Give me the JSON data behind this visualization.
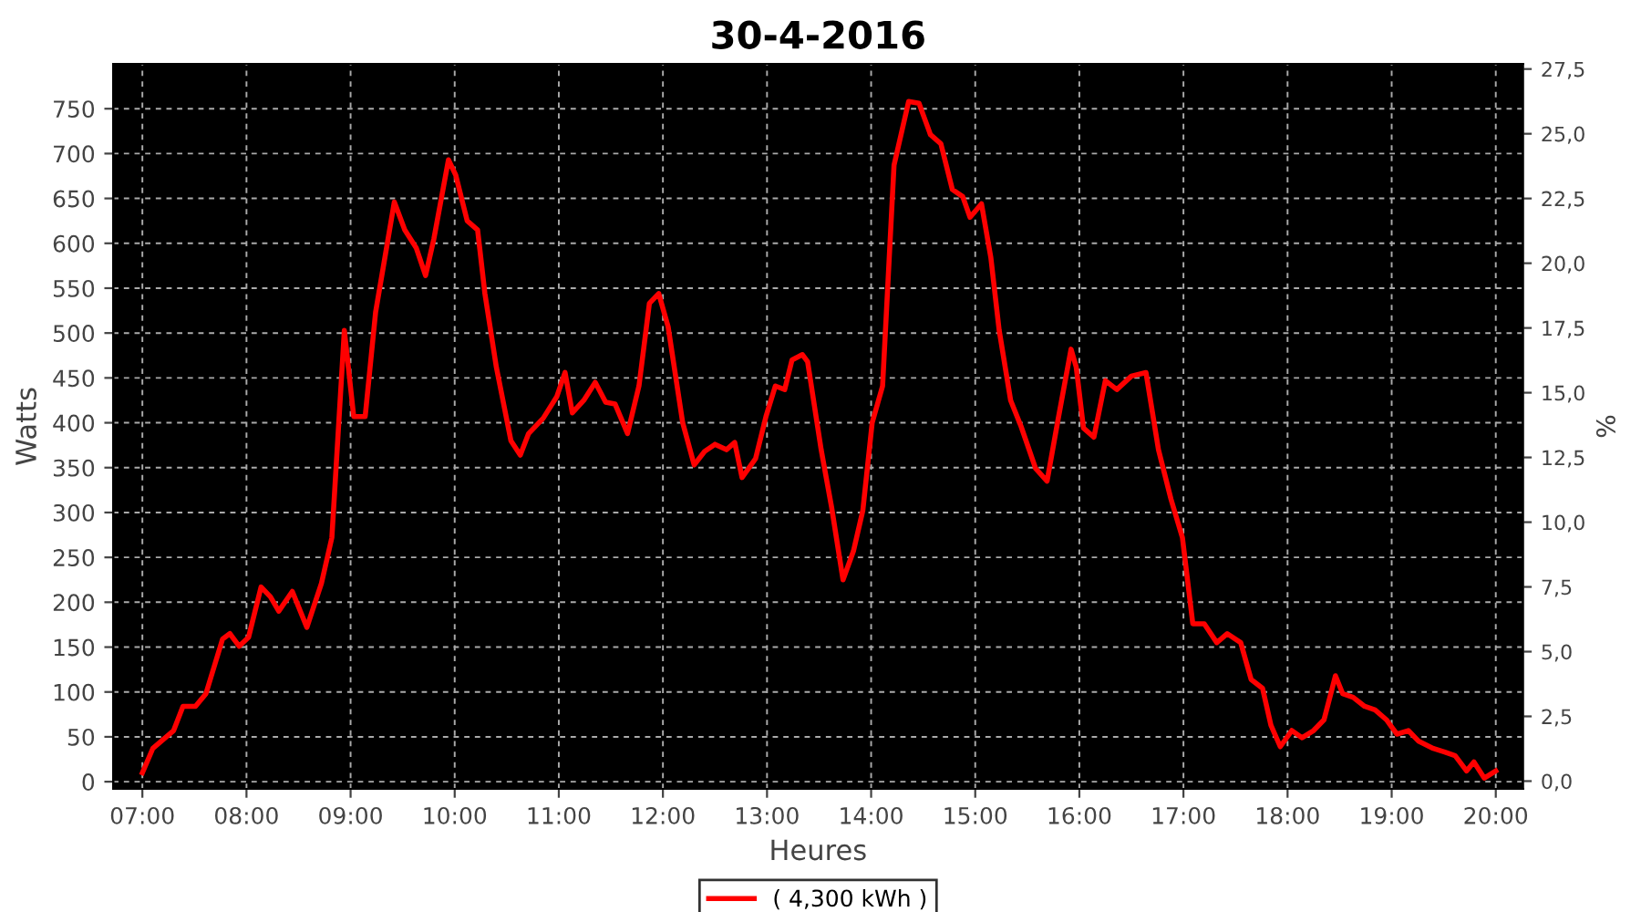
{
  "chart_data": {
    "type": "line",
    "title": "30-4-2016",
    "xlabel": "Heures",
    "ylabel": "Watts",
    "y2label": "%",
    "x": [
      7.0,
      7.1,
      7.3,
      7.39,
      7.51,
      7.61,
      7.77,
      7.84,
      7.93,
      8.02,
      8.14,
      8.23,
      8.31,
      8.44,
      8.58,
      8.72,
      8.82,
      8.94,
      9.03,
      9.14,
      9.24,
      9.42,
      9.52,
      9.63,
      9.72,
      9.8,
      9.94,
      10.01,
      10.12,
      10.22,
      10.29,
      10.4,
      10.54,
      10.63,
      10.71,
      10.85,
      10.98,
      11.06,
      11.13,
      11.24,
      11.35,
      11.45,
      11.54,
      11.66,
      11.77,
      11.87,
      11.96,
      12.05,
      12.19,
      12.3,
      12.4,
      12.5,
      12.61,
      12.69,
      12.76,
      12.89,
      12.99,
      13.08,
      13.17,
      13.24,
      13.34,
      13.39,
      13.52,
      13.62,
      13.73,
      13.83,
      13.92,
      14.01,
      14.11,
      14.22,
      14.36,
      14.46,
      14.57,
      14.67,
      14.78,
      14.88,
      14.95,
      15.06,
      15.15,
      15.23,
      15.34,
      15.44,
      15.58,
      15.69,
      15.79,
      15.92,
      15.97,
      16.04,
      16.14,
      16.25,
      16.36,
      16.5,
      16.64,
      16.76,
      16.88,
      16.99,
      17.09,
      17.2,
      17.32,
      17.42,
      17.55,
      17.65,
      17.76,
      17.84,
      17.93,
      18.04,
      18.14,
      18.25,
      18.35,
      18.46,
      18.53,
      18.63,
      18.74,
      18.84,
      18.95,
      19.05,
      19.16,
      19.26,
      19.4,
      19.51,
      19.61,
      19.72,
      19.79,
      19.89,
      20.0
    ],
    "series": [
      {
        "name": "( 4,300 kWh )",
        "color": "#ff0000",
        "values": [
          10,
          37,
          57,
          84,
          84,
          98,
          159,
          165,
          151,
          161,
          217,
          206,
          190,
          212,
          172,
          221,
          272,
          503,
          407,
          407,
          523,
          646,
          615,
          595,
          564,
          605,
          693,
          676,
          625,
          615,
          544,
          462,
          380,
          364,
          388,
          405,
          429,
          456,
          411,
          425,
          445,
          423,
          421,
          388,
          441,
          533,
          544,
          507,
          400,
          353,
          368,
          376,
          370,
          378,
          339,
          360,
          407,
          441,
          437,
          470,
          476,
          468,
          370,
          306,
          225,
          257,
          302,
          400,
          441,
          687,
          758,
          756,
          721,
          711,
          660,
          652,
          629,
          644,
          584,
          503,
          425,
          396,
          349,
          335,
          400,
          482,
          462,
          394,
          384,
          447,
          437,
          452,
          456,
          370,
          315,
          272,
          176,
          176,
          155,
          165,
          155,
          114,
          104,
          63,
          39,
          57,
          49,
          57,
          69,
          118,
          98,
          94,
          84,
          80,
          69,
          53,
          57,
          45,
          37,
          33,
          29,
          12,
          22,
          4,
          12
        ]
      }
    ],
    "xlim": [
      6.72,
      20.26
    ],
    "xticks": [
      {
        "value": 7,
        "label": "07:00"
      },
      {
        "value": 8,
        "label": "08:00"
      },
      {
        "value": 9,
        "label": "09:00"
      },
      {
        "value": 10,
        "label": "10:00"
      },
      {
        "value": 11,
        "label": "11:00"
      },
      {
        "value": 12,
        "label": "12:00"
      },
      {
        "value": 13,
        "label": "13:00"
      },
      {
        "value": 14,
        "label": "14:00"
      },
      {
        "value": 15,
        "label": "15:00"
      },
      {
        "value": 16,
        "label": "16:00"
      },
      {
        "value": 17,
        "label": "17:00"
      },
      {
        "value": 18,
        "label": "18:00"
      },
      {
        "value": 19,
        "label": "19:00"
      },
      {
        "value": 20,
        "label": "20:00"
      }
    ],
    "ylim": [
      -8,
      800
    ],
    "yticks": [
      0,
      50,
      100,
      150,
      200,
      250,
      300,
      350,
      400,
      450,
      500,
      550,
      600,
      650,
      700,
      750
    ],
    "y2lim": [
      -0.3,
      27.7
    ],
    "y2ticks": [
      {
        "value": 0,
        "label": "0,0"
      },
      {
        "value": 2.5,
        "label": "2,5"
      },
      {
        "value": 5,
        "label": "5,0"
      },
      {
        "value": 7.5,
        "label": "7,5"
      },
      {
        "value": 10,
        "label": "10,0"
      },
      {
        "value": 12.5,
        "label": "12,5"
      },
      {
        "value": 15,
        "label": "15,0"
      },
      {
        "value": 17.5,
        "label": "17,5"
      },
      {
        "value": 20,
        "label": "20,0"
      },
      {
        "value": 22.5,
        "label": "22,5"
      },
      {
        "value": 25,
        "label": "25,0"
      },
      {
        "value": 27.5,
        "label": "27,5"
      }
    ],
    "grid": true,
    "legend": "bottom",
    "line_style": "solid"
  }
}
